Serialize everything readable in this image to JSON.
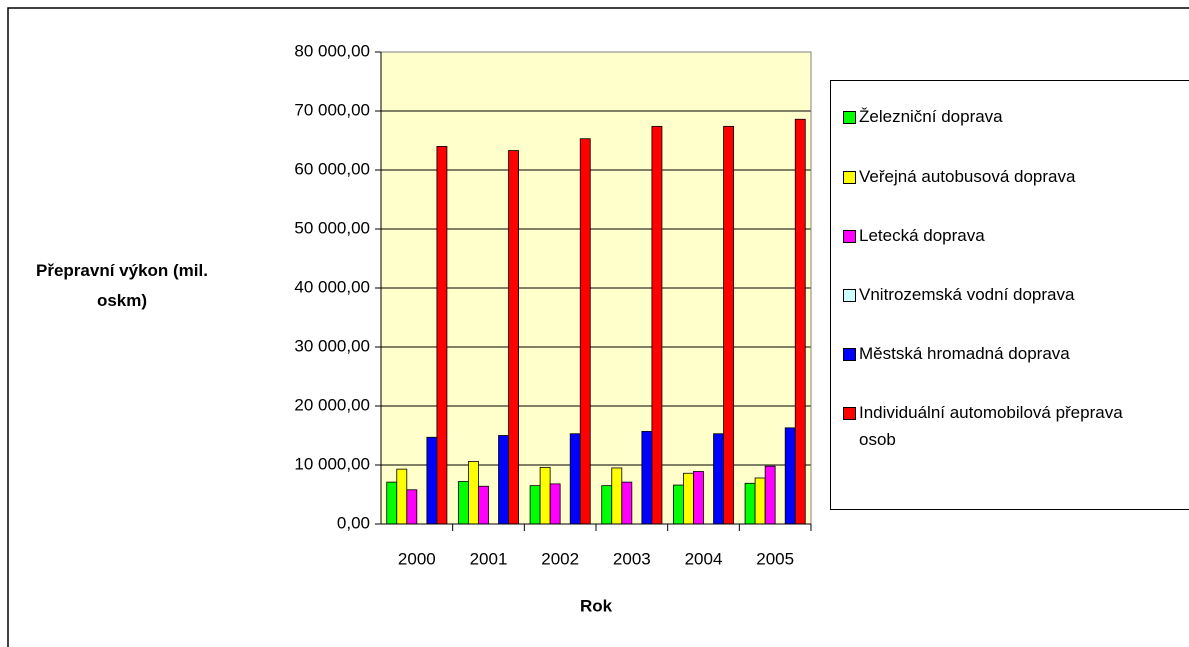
{
  "chart_data": {
    "type": "bar",
    "y_label": "Přepravní výkon (mil. oskm)",
    "x_label": "Rok",
    "categories": [
      "2000",
      "2001",
      "2002",
      "2003",
      "2004",
      "2005"
    ],
    "series": [
      {
        "name": "Železniční doprava",
        "color": "#00ff00",
        "values": [
          7100,
          7200,
          6500,
          6500,
          6600,
          6900
        ]
      },
      {
        "name": "Veřejná autobusová doprava",
        "color": "#ffff00",
        "values": [
          9300,
          10600,
          9600,
          9500,
          8600,
          7800
        ]
      },
      {
        "name": "Letecká doprava",
        "color": "#ff00ff",
        "values": [
          5800,
          6400,
          6800,
          7100,
          8900,
          9800
        ]
      },
      {
        "name": "Vnitrozemská vodní doprava",
        "color": "#ccffff",
        "values": [
          0,
          0,
          0,
          0,
          0,
          0
        ]
      },
      {
        "name": "Městská hromadná doprava",
        "color": "#0000ff",
        "values": [
          14700,
          15000,
          15300,
          15700,
          15300,
          16300
        ]
      },
      {
        "name": "Individuální automobilová přeprava osob",
        "color": "#ff0000",
        "values": [
          64000,
          63300,
          65300,
          67400,
          67400,
          68600
        ]
      }
    ],
    "ylim": [
      0,
      80000
    ],
    "yticks": [
      {
        "value": 0,
        "label": "0,00"
      },
      {
        "value": 10000,
        "label": "10 000,00"
      },
      {
        "value": 20000,
        "label": "20 000,00"
      },
      {
        "value": 30000,
        "label": "30 000,00"
      },
      {
        "value": 40000,
        "label": "40 000,00"
      },
      {
        "value": 50000,
        "label": "50 000,00"
      },
      {
        "value": 60000,
        "label": "60 000,00"
      },
      {
        "value": 70000,
        "label": "70 000,00"
      },
      {
        "value": 80000,
        "label": "80 000,00"
      }
    ],
    "plot_background": "#ffffcc",
    "grid": true
  }
}
